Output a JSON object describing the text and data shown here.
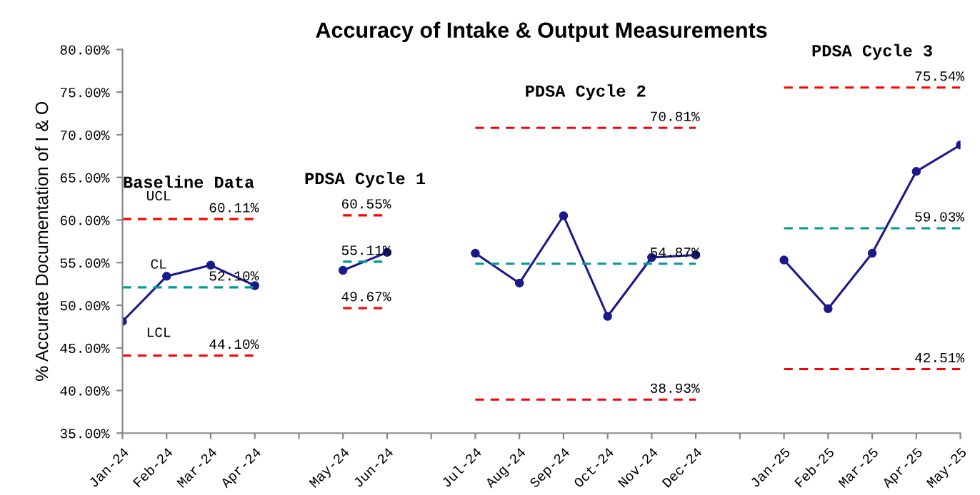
{
  "chart_data": {
    "type": "line",
    "title": "Accuracy of Intake & Output Measurements",
    "ylabel": "% Accurate Documentation of I & O",
    "categories": [
      "Jan-24",
      "Feb-24",
      "Mar-24",
      "Apr-24",
      null,
      "May-24",
      "Jun-24",
      null,
      "Jul-24",
      "Aug-24",
      "Sep-24",
      "Oct-24",
      "Nov-24",
      "Dec-24",
      null,
      "Jan-25",
      "Feb-25",
      "Mar-25",
      "Apr-25",
      "May-25"
    ],
    "series": [
      {
        "color": "#1a1a8c",
        "marker": "circle",
        "line_style": "solid",
        "values": [
          48.1,
          53.4,
          54.7,
          52.3,
          null,
          54.1,
          56.2,
          null,
          56.1,
          52.6,
          60.5,
          48.7,
          55.6,
          55.9,
          null,
          55.3,
          49.6,
          56.1,
          65.7,
          68.8
        ]
      },
      {
        "color": "#ff0000",
        "marker": "none",
        "line_style": "dashed",
        "values": [
          60.11,
          60.11,
          60.11,
          60.11,
          null,
          60.55,
          60.55,
          null,
          70.81,
          70.81,
          70.81,
          70.81,
          70.81,
          70.81,
          null,
          75.54,
          75.54,
          75.54,
          75.54,
          75.54
        ]
      },
      {
        "color": "#009999",
        "marker": "none",
        "line_style": "dashed",
        "values": [
          52.1,
          52.1,
          52.1,
          52.1,
          null,
          55.11,
          55.11,
          null,
          54.87,
          54.87,
          54.87,
          54.87,
          54.87,
          54.87,
          null,
          59.03,
          59.03,
          59.03,
          59.03,
          59.03
        ]
      },
      {
        "color": "#ff0000",
        "marker": "none",
        "line_style": "dashed",
        "values": [
          44.1,
          44.1,
          44.1,
          44.1,
          null,
          49.67,
          49.67,
          null,
          38.93,
          38.93,
          38.93,
          38.93,
          38.93,
          38.93,
          null,
          42.51,
          42.51,
          42.51,
          42.51,
          42.51
        ]
      }
    ],
    "ylim": [
      35,
      80
    ],
    "yticks": [
      {
        "value": 35,
        "label": "35.00%"
      },
      {
        "value": 40,
        "label": "40.00%"
      },
      {
        "value": 45,
        "label": "45.00%"
      },
      {
        "value": 50,
        "label": "50.00%"
      },
      {
        "value": 55,
        "label": "55.00%"
      },
      {
        "value": 60,
        "label": "60.00%"
      },
      {
        "value": 65,
        "label": "65.00%"
      },
      {
        "value": 70,
        "label": "70.00%"
      },
      {
        "value": 75,
        "label": "75.00%"
      },
      {
        "value": 80,
        "label": "80.00%"
      }
    ],
    "grid": false,
    "annotations": [
      "Baseline Data",
      "PDSA Cycle 1",
      "PDSA Cycle 2",
      "PDSA Cycle 3",
      {
        "text": "UCL",
        "x": "Feb-24",
        "y": 60.11
      },
      {
        "text": "CL",
        "x": "Feb-24",
        "y": 52.1
      },
      {
        "text": "LCL",
        "x": "Feb-24",
        "y": 44.1
      },
      {
        "text": "60.11%",
        "x": "Apr-24",
        "y": 60.11
      },
      {
        "text": "52.10%",
        "x": "Apr-24",
        "y": 52.1
      },
      {
        "text": "44.10%",
        "x": "Apr-24",
        "y": 44.1
      },
      {
        "text": "60.55%",
        "x": "Jun-24",
        "y": 60.55
      },
      {
        "text": "55.11%",
        "x": "Jun-24",
        "y": 55.11
      },
      {
        "text": "49.67%",
        "x": "Jun-24",
        "y": 49.67
      },
      {
        "text": "70.81%",
        "x": "Dec-24",
        "y": 70.81
      },
      {
        "text": "54.87%",
        "x": "Dec-24",
        "y": 54.87
      },
      {
        "text": "38.93%",
        "x": "Dec-24",
        "y": 38.93
      },
      {
        "text": "75.54%",
        "x": "May-25",
        "y": 75.54
      },
      {
        "text": "59.03%",
        "x": "May-25",
        "y": 59.03
      },
      {
        "text": "42.51%",
        "x": "May-25",
        "y": 42.51
      }
    ]
  }
}
